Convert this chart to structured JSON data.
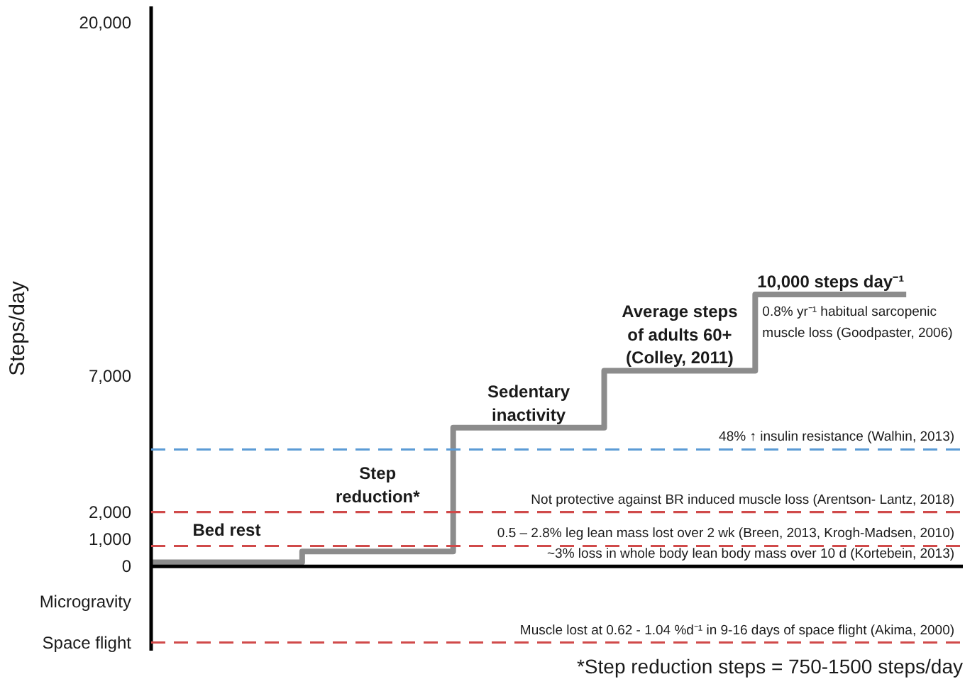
{
  "chart_data": {
    "type": "step",
    "categories": [
      null,
      null,
      null,
      null,
      null,
      null
    ],
    "series": [
      {
        "color": "#8c8c8c",
        "values": [
          150,
          550,
          5100,
          7200,
          10000,
          10000
        ]
      }
    ],
    "ylabel": "Steps/day",
    "ylim": [
      -3100,
      20600
    ],
    "yticks": [
      {
        "value": -2800,
        "label": "Space flight"
      },
      {
        "value": -1300,
        "label": "Microgravity"
      },
      0,
      {
        "value": 1000,
        "label": "1,000"
      },
      {
        "value": 2000,
        "label": "2,000"
      },
      {
        "value": 7000,
        "label": "7,000"
      },
      {
        "value": 20000,
        "label": "20,000"
      }
    ],
    "ref_lines": [
      {
        "axis": "y",
        "value": 0,
        "label": "~3% loss in whole body lean body mass over 10 d (Kortebein, 2013)",
        "color": "#000000",
        "line_style": "solid"
      },
      {
        "axis": "y",
        "value": 750,
        "label": "0.5 – 2.8% leg lean mass lost over 2 wk (Breen, 2013, Krogh-Madsen, 2010)",
        "color": "#d04a4a",
        "line_style": "dashed"
      },
      {
        "axis": "y",
        "value": 2000,
        "label": "Not protective against BR induced muscle loss (Arentson- Lantz, 2018)",
        "color": "#d04a4a",
        "line_style": "dashed"
      },
      {
        "axis": "y",
        "value": 4300,
        "label": "48% ↑ insulin resistance (Walhin, 2013)",
        "color": "#5b9bd5",
        "line_style": "dashed"
      },
      {
        "axis": "y",
        "value": -2800,
        "label": "Muscle lost at 0.62 - 1.04 %d⁻¹ in 9-16 days of space flight (Akima, 2000)",
        "color": "#d04a4a",
        "line_style": "dashed"
      }
    ],
    "annotations": [
      {
        "text": "Bed rest",
        "y": 150
      },
      {
        "text": "Step\nreduction*",
        "y": 550
      },
      {
        "text": "Sedentary\ninactivity",
        "y": 5100
      },
      {
        "text": "Average steps\nof adults 60+\n(Colley, 2011)",
        "y": 7200
      },
      {
        "text": "10,000 steps day⁻¹",
        "y": 10000
      },
      "0.8% yr⁻¹ habitual sarcopenic\nmuscle loss (Goodpaster, 2006)",
      "*Step reduction steps = 750-1500 steps/day"
    ],
    "grid": false
  }
}
